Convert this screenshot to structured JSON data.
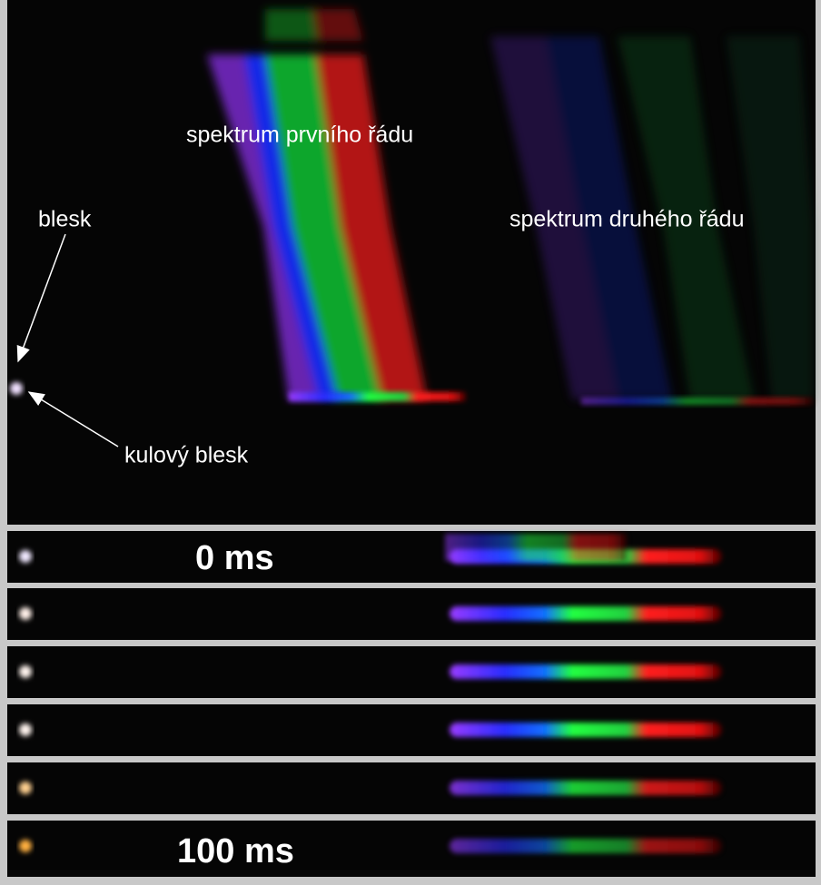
{
  "labels": {
    "first_order": "spektrum prvního řádu",
    "second_order": "spektrum druhého řádu",
    "flash": "blesk",
    "ball_lightning": "kulový blesk"
  },
  "strips": {
    "first": "0 ms",
    "last": "100 ms"
  }
}
